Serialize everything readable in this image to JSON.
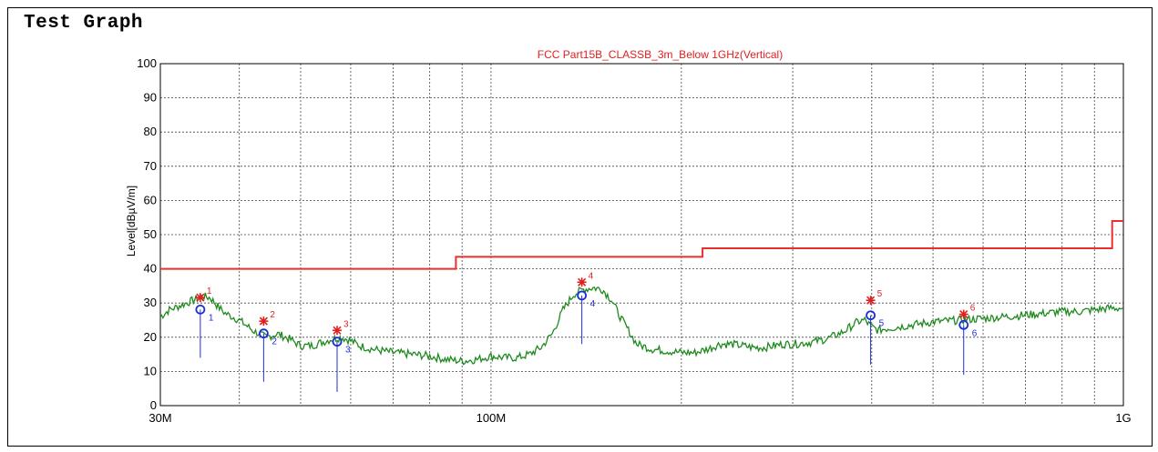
{
  "page": {
    "title": "Test Graph"
  },
  "chart_data": {
    "type": "line",
    "title": "FCC Part15B_CLASSB_3m_Below 1GHz(Vertical)",
    "xlabel": "",
    "ylabel": "Level[dBµV/m]",
    "x_scale": "log",
    "xlim": [
      30,
      1000
    ],
    "ylim": [
      0,
      100
    ],
    "x_tick_labels": [
      {
        "value": 30,
        "label": "30M"
      },
      {
        "value": 100,
        "label": "100M"
      },
      {
        "value": 1000,
        "label": "1G"
      }
    ],
    "y_ticks": [
      0,
      10,
      20,
      30,
      40,
      50,
      60,
      70,
      80,
      90,
      100
    ],
    "grid": true,
    "colors": {
      "limit": "#e8312f",
      "trace": "#1f8a1f",
      "qp": "#1c2fd6",
      "peak": "#e02020"
    },
    "series": [
      {
        "role": "limit",
        "x": [
          30,
          88,
          88,
          216,
          216,
          960,
          960,
          1000
        ],
        "y": [
          40,
          40,
          43.5,
          43.5,
          46,
          46,
          54,
          54
        ]
      },
      {
        "role": "trace",
        "x": [
          30,
          31,
          32,
          33,
          34,
          35,
          36,
          37,
          38,
          40,
          42,
          44,
          46,
          48,
          50,
          52,
          54,
          56,
          58,
          60,
          62,
          65,
          70,
          75,
          80,
          85,
          90,
          95,
          100,
          105,
          110,
          115,
          120,
          125,
          130,
          135,
          140,
          145,
          150,
          155,
          160,
          170,
          180,
          190,
          200,
          210,
          220,
          230,
          240,
          250,
          260,
          270,
          280,
          290,
          300,
          320,
          340,
          360,
          380,
          390,
          400,
          410,
          420,
          440,
          460,
          500,
          550,
          600,
          650,
          700,
          750,
          800,
          850,
          900,
          950,
          1000
        ],
        "y": [
          26,
          28,
          29,
          30,
          31,
          32,
          31.5,
          29,
          27,
          25,
          22,
          20,
          21,
          19.5,
          17.5,
          17.5,
          18.5,
          19.5,
          20,
          19,
          17.5,
          16.5,
          15.5,
          15,
          14.5,
          13.5,
          13,
          13.5,
          14.5,
          14,
          14,
          15,
          17,
          21,
          28,
          32.5,
          34,
          34.5,
          34,
          31,
          26,
          18,
          16.5,
          16,
          15.5,
          15.5,
          16.5,
          18,
          18,
          17.5,
          17,
          17,
          17.5,
          18,
          18,
          18.5,
          19.5,
          21.5,
          24.5,
          25,
          23,
          22,
          22.5,
          23,
          23.5,
          24.5,
          25,
          25.5,
          26,
          26.5,
          27,
          27.5,
          27.5,
          28,
          28.5,
          28.5
        ]
      }
    ],
    "markers": [
      {
        "id": "1",
        "x": 34.7,
        "peak": 31.6,
        "qp": 28.1,
        "qp_stem_low": 14
      },
      {
        "id": "2",
        "x": 43.7,
        "peak": 24.7,
        "qp": 21.1,
        "qp_stem_low": 7
      },
      {
        "id": "3",
        "x": 57.1,
        "peak": 22.0,
        "qp": 18.7,
        "qp_stem_low": 4
      },
      {
        "id": "4",
        "x": 139.2,
        "peak": 36.1,
        "qp": 32.2,
        "qp_stem_low": 18
      },
      {
        "id": "5",
        "x": 398.4,
        "peak": 30.8,
        "qp": 26.4,
        "qp_stem_low": 12
      },
      {
        "id": "6",
        "x": 559.1,
        "peak": 26.7,
        "qp": 23.6,
        "qp_stem_low": 9
      }
    ]
  }
}
